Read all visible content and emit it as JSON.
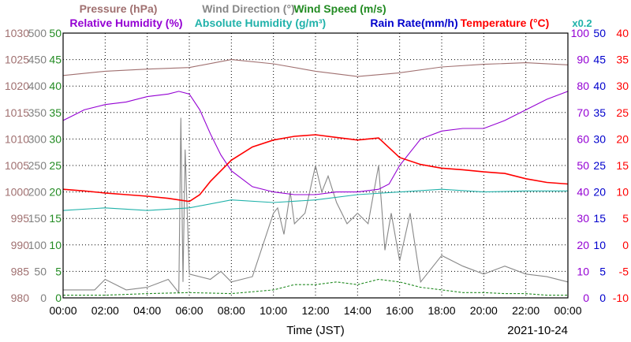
{
  "chart_data": {
    "type": "line",
    "date": "2021-10-24",
    "xlabel": "Time (JST)",
    "x_ticks": [
      "00:00",
      "02:00",
      "04:00",
      "06:00",
      "08:00",
      "10:00",
      "12:00",
      "14:00",
      "16:00",
      "18:00",
      "20:00",
      "22:00",
      "00:00"
    ],
    "x_range_hours": [
      0,
      24
    ],
    "grid": true,
    "legend": [
      {
        "key": "pressure",
        "label": "Pressure (hPa)",
        "color": "#a07070"
      },
      {
        "key": "wind_dir",
        "label": "Wind Direction (°)",
        "color": "#888888"
      },
      {
        "key": "wind_speed",
        "label": "Wind Speed (m/s)",
        "color": "#228b22"
      },
      {
        "key": "rh",
        "label": "Relative Humidity (%)",
        "color": "#9400d3"
      },
      {
        "key": "ah",
        "label": "Absolute Humidity (g/m³)",
        "color": "#20b2aa"
      },
      {
        "key": "rain",
        "label": "Rain Rate(mm/h)",
        "color": "#0000cd"
      },
      {
        "key": "temp",
        "label": "Temperature (°C)",
        "color": "#ff0000"
      }
    ],
    "rain_scale_note": "x0.2",
    "axes": {
      "pressure": {
        "range": [
          980,
          1030
        ],
        "ticks": [
          "1030",
          "1025",
          "1020",
          "1015",
          "1010",
          "1005",
          "1000",
          "995",
          "990",
          "985",
          "980"
        ],
        "color": "#a07070"
      },
      "wind_dir": {
        "range": [
          0,
          500
        ],
        "ticks": [
          "500",
          "450",
          "400",
          "350",
          "300",
          "250",
          "200",
          "150",
          "100",
          "50",
          "0"
        ],
        "color": "#808080"
      },
      "wind_speed": {
        "range": [
          0,
          50
        ],
        "ticks": [
          "50",
          "45",
          "40",
          "35",
          "30",
          "25",
          "20",
          "15",
          "10",
          "5",
          "0"
        ],
        "color": "#228b22"
      },
      "rh": {
        "range": [
          0,
          100
        ],
        "ticks": [
          "100",
          "90",
          "80",
          "70",
          "60",
          "50",
          "40",
          "30",
          "20",
          "10",
          "0"
        ],
        "color": "#9400d3"
      },
      "rain": {
        "range": [
          0,
          50
        ],
        "ticks": [
          "50",
          "45",
          "40",
          "35",
          "30",
          "25",
          "20",
          "15",
          "10",
          "5",
          "0"
        ],
        "color": "#0000cd"
      },
      "temp": {
        "range": [
          -10,
          40
        ],
        "ticks": [
          "40",
          "35",
          "30",
          "25",
          "20",
          "15",
          "10",
          "5",
          "0",
          "-5",
          "-10"
        ],
        "color": "#ff0000"
      }
    },
    "series": [
      {
        "key": "pressure",
        "x": [
          0,
          2,
          4,
          6,
          8,
          10,
          12,
          14,
          16,
          18,
          20,
          22,
          24
        ],
        "y": [
          1022,
          1022.8,
          1023.2,
          1023.5,
          1025.0,
          1024.2,
          1022.8,
          1021.8,
          1022.5,
          1023.6,
          1024.1,
          1024.4,
          1024.0
        ]
      },
      {
        "key": "temp",
        "x": [
          0,
          1,
          2,
          3,
          4,
          5,
          6,
          6.5,
          7,
          8,
          9,
          10,
          11,
          12,
          13,
          14,
          15,
          16,
          17,
          18,
          19,
          20,
          21,
          22,
          23,
          24
        ],
        "y": [
          10.5,
          10.2,
          9.8,
          9.5,
          9.2,
          8.8,
          8.2,
          9.5,
          12,
          16,
          18.5,
          19.8,
          20.5,
          20.8,
          20.3,
          19.8,
          20.2,
          16.5,
          15.2,
          14.5,
          14.2,
          13.8,
          13.5,
          12.5,
          11.8,
          11.5
        ]
      },
      {
        "key": "rh",
        "x": [
          0,
          0.5,
          1,
          2,
          3,
          4,
          5,
          5.5,
          6,
          6.5,
          7,
          7.5,
          8,
          9,
          10,
          11,
          12,
          13,
          14,
          15,
          15.5,
          16,
          16.5,
          17,
          18,
          19,
          20,
          21,
          22,
          23,
          24
        ],
        "y": [
          67,
          69,
          71,
          73,
          74,
          76,
          77,
          78,
          77,
          71,
          62,
          54,
          48,
          42,
          40,
          39,
          39,
          40,
          40,
          41,
          43,
          50,
          55,
          60,
          63,
          64,
          64,
          67,
          71,
          75,
          78
        ]
      },
      {
        "key": "ah",
        "x": [
          0,
          2,
          4,
          6,
          8,
          10,
          12,
          14,
          16,
          18,
          20,
          22,
          24
        ],
        "y": [
          16.5,
          17,
          16.5,
          17,
          18.5,
          18,
          18.5,
          19.5,
          20,
          20.5,
          20,
          20.2,
          20.2
        ]
      },
      {
        "key": "wind_dir",
        "x": [
          0,
          1.5,
          2,
          3,
          4,
          5,
          5.5,
          5.6,
          5.7,
          5.8,
          6,
          7,
          7.5,
          8,
          9,
          10,
          10.2,
          10.5,
          10.8,
          11,
          11.5,
          12,
          12.3,
          12.6,
          13,
          13.5,
          14,
          14.5,
          15,
          15.3,
          15.6,
          16,
          16.5,
          17,
          18,
          19,
          20,
          21,
          22,
          23,
          24
        ],
        "y": [
          15,
          15,
          35,
          15,
          20,
          35,
          10,
          340,
          30,
          280,
          45,
          35,
          50,
          30,
          40,
          160,
          170,
          120,
          200,
          140,
          160,
          250,
          200,
          230,
          180,
          140,
          160,
          140,
          250,
          90,
          160,
          70,
          160,
          30,
          80,
          60,
          45,
          60,
          45,
          40,
          30
        ]
      },
      {
        "key": "wind_speed",
        "x": [
          0,
          2,
          4,
          6,
          8,
          10,
          11,
          12,
          13,
          14,
          15,
          16,
          17,
          18,
          19,
          20,
          21,
          22,
          23,
          24
        ],
        "y": [
          0.5,
          0.5,
          0.8,
          1.0,
          0.8,
          1.5,
          2.5,
          2.5,
          3.0,
          2.5,
          3.5,
          3.0,
          2.0,
          1.5,
          1.0,
          1.0,
          0.8,
          0.8,
          0.5,
          0.5
        ]
      },
      {
        "key": "rain",
        "x": [
          0,
          24
        ],
        "y": [
          0,
          0
        ]
      }
    ]
  }
}
